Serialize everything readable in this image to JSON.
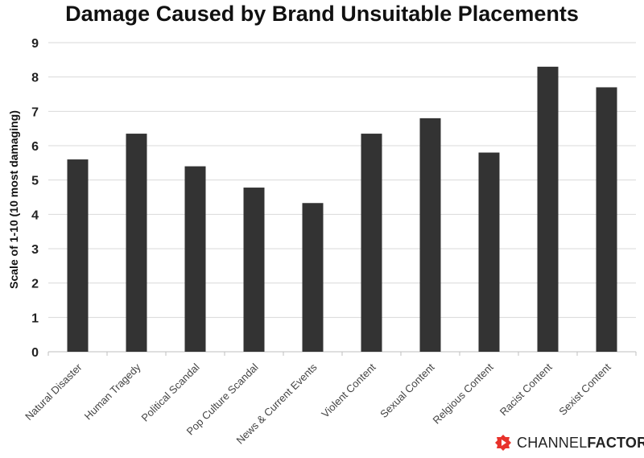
{
  "chart_data": {
    "type": "bar",
    "title": "Damage Caused by Brand Unsuitable Placements",
    "ylabel": "Scale of 1-10 (10 most damaging)",
    "xlabel": "",
    "ylim": [
      0,
      9
    ],
    "yticks": [
      0,
      1,
      2,
      3,
      4,
      5,
      6,
      7,
      8,
      9
    ],
    "grid": true,
    "categories": [
      "Natural Disaster",
      "Human Tragedy",
      "Political Scandal",
      "Pop Culture Scandal",
      "News & Current Events",
      "Violent Content",
      "Sexual Content",
      "Relgious Content",
      "Racist Content",
      "Sexist Content"
    ],
    "values": [
      5.6,
      6.35,
      5.4,
      4.78,
      4.33,
      6.35,
      6.8,
      5.8,
      8.3,
      7.7
    ],
    "bar_color": "#333333",
    "grid_color": "#d9d9d9"
  },
  "brand": {
    "name_light": "CHANNEL",
    "name_bold": "FACTORY",
    "icon": "channel-factory-logo-icon",
    "accent": "#e8322b"
  }
}
